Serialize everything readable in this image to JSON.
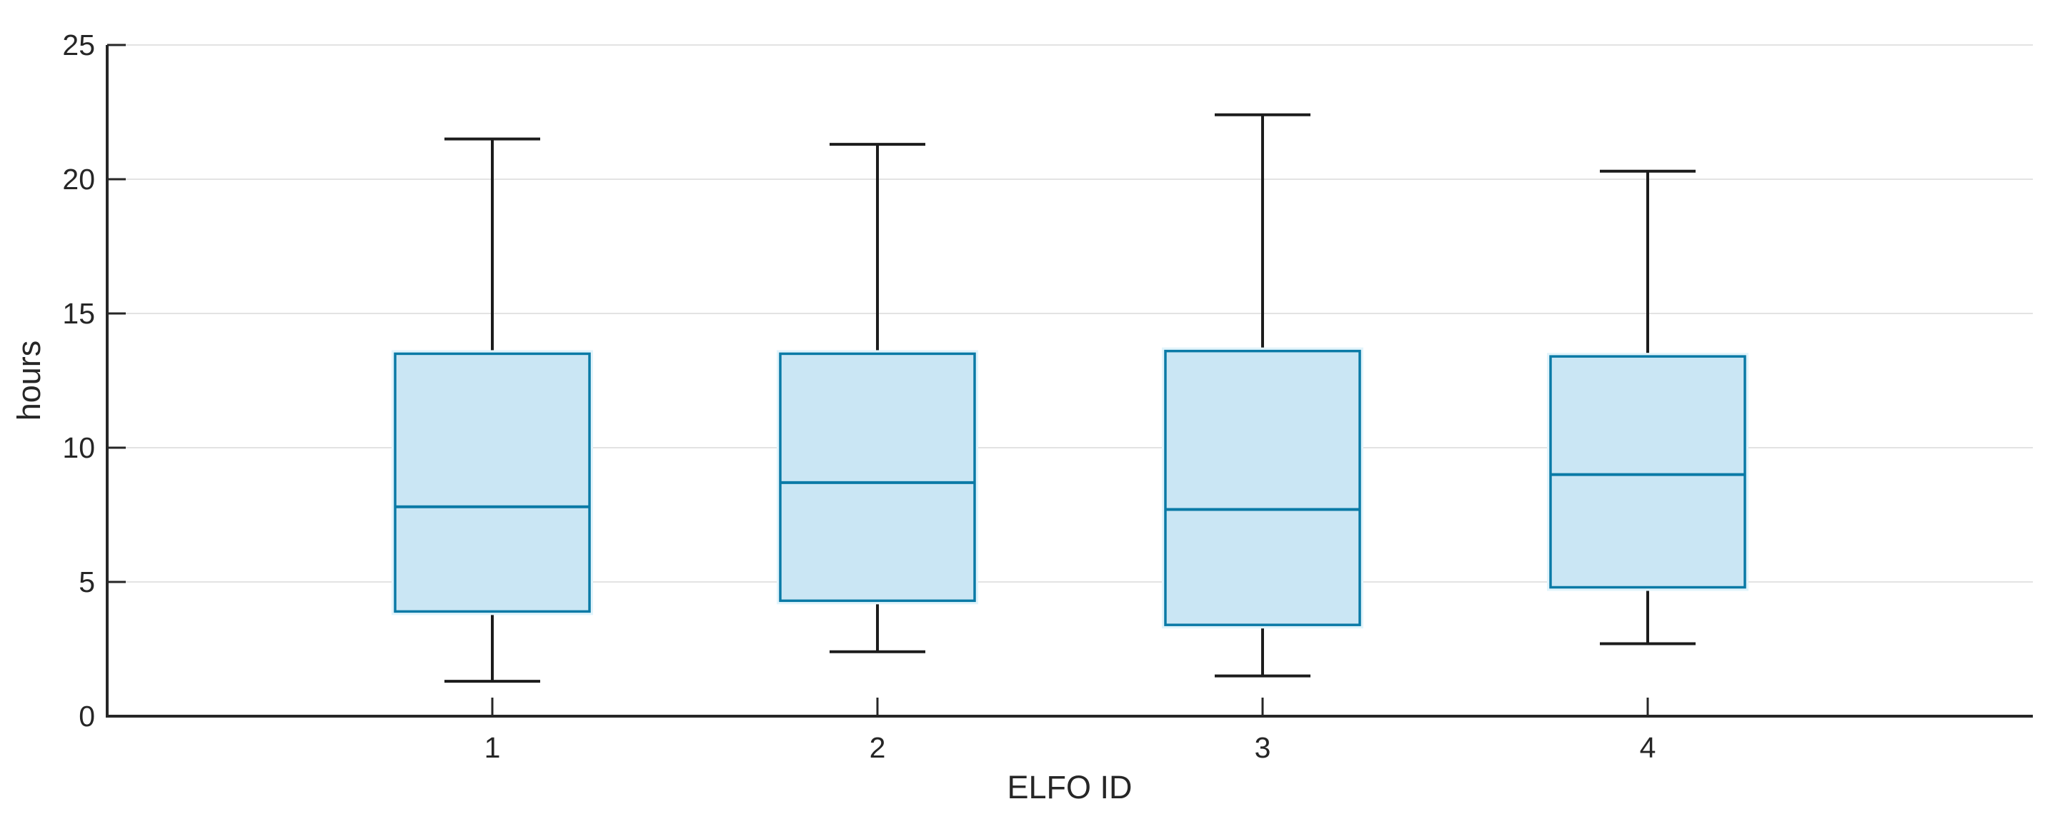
{
  "figure": {
    "background": "#ffffff"
  },
  "chart_data": {
    "type": "boxplot",
    "title": "",
    "xlabel": "ELFO ID",
    "ylabel": "hours",
    "categories": [
      "1",
      "2",
      "3",
      "4"
    ],
    "ylim": [
      0,
      25
    ],
    "yticks": [
      0,
      5,
      10,
      15,
      20,
      25
    ],
    "grid": "horizontal-only",
    "legend": "none",
    "series": [
      {
        "category": "1",
        "whisker_low": 1.3,
        "q1": 3.9,
        "median": 7.8,
        "q3": 13.5,
        "whisker_high": 21.5
      },
      {
        "category": "2",
        "whisker_low": 2.4,
        "q1": 4.3,
        "median": 8.7,
        "q3": 13.5,
        "whisker_high": 21.3
      },
      {
        "category": "3",
        "whisker_low": 1.5,
        "q1": 3.4,
        "median": 7.7,
        "q3": 13.6,
        "whisker_high": 22.4
      },
      {
        "category": "4",
        "whisker_low": 2.7,
        "q1": 4.8,
        "median": 9.0,
        "q3": 13.4,
        "whisker_high": 20.3
      }
    ],
    "colors": {
      "box_fill": "#cae6f4",
      "box_edge": "#0a7aa6",
      "box_glow": "#e2f4fb",
      "median": "#0a7aa6",
      "whisker": "#1c1c1c",
      "grid": "#e3e3e3",
      "axis": "#262626",
      "text": "#262626",
      "background": "#ffffff"
    }
  }
}
